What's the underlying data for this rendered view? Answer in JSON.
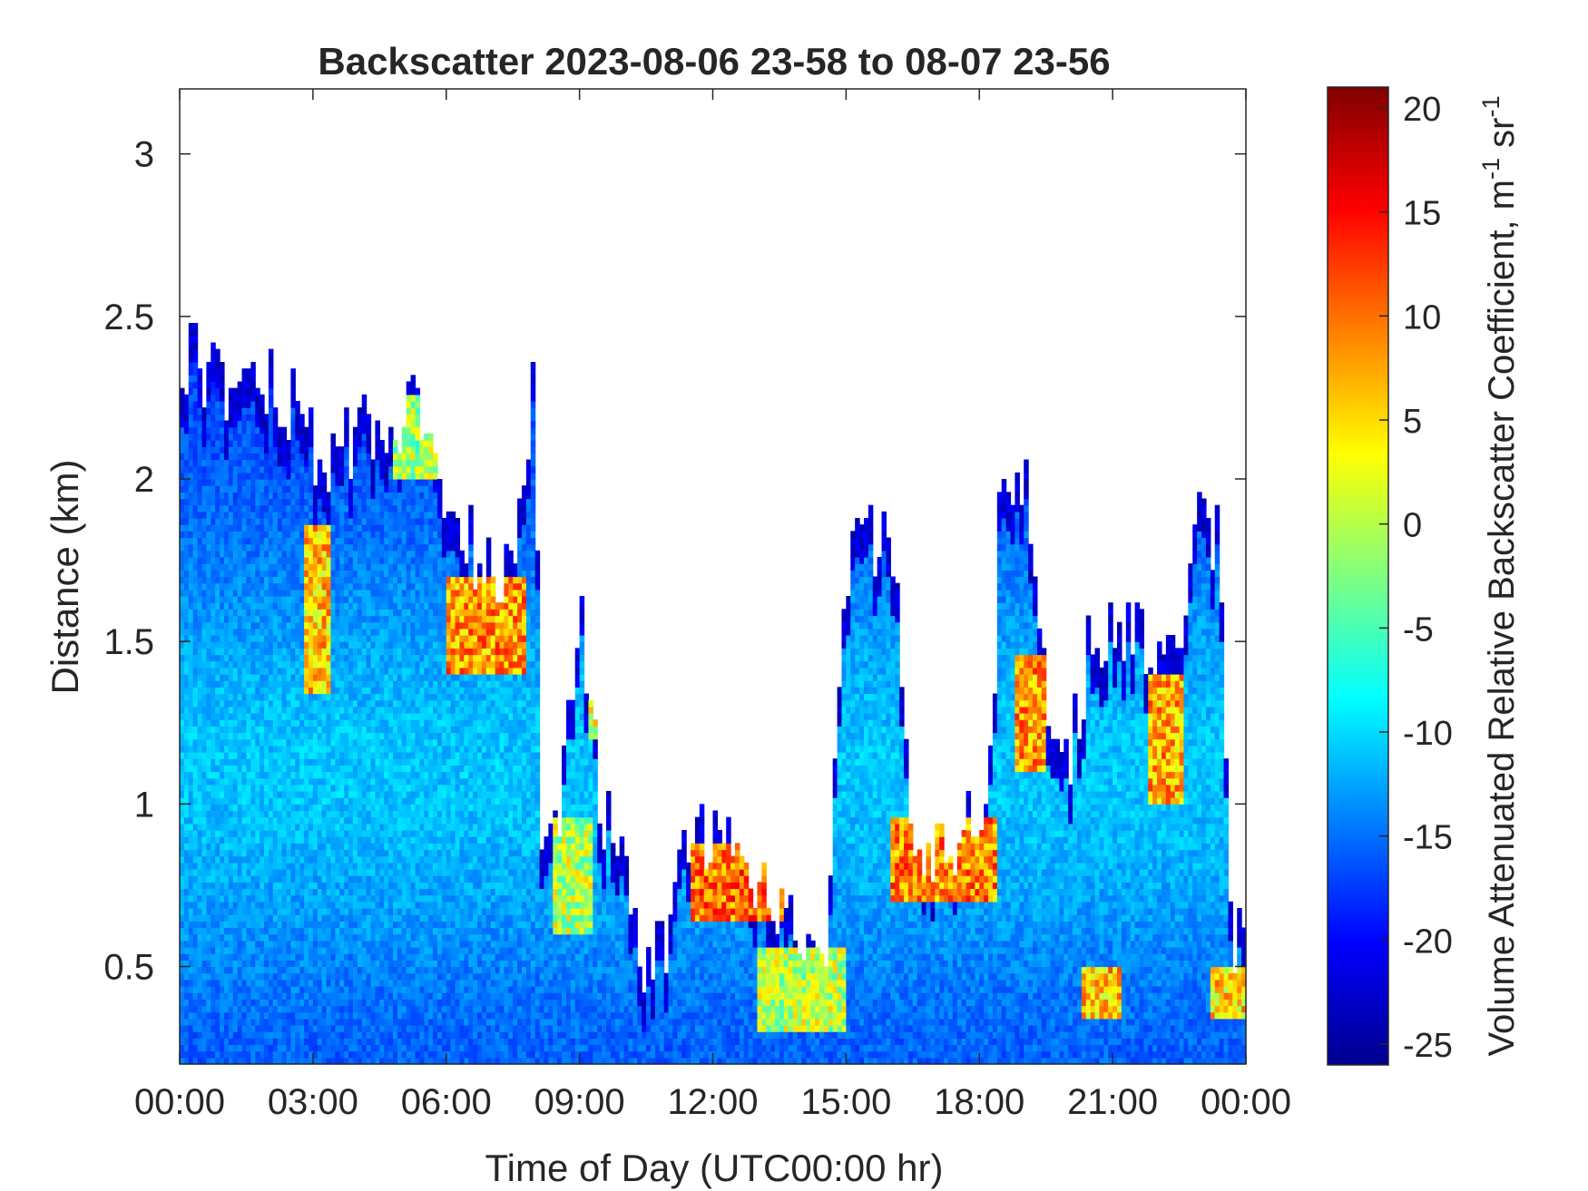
{
  "chart_data": {
    "type": "heatmap",
    "title": "Backscatter 2023-08-06 23-58 to 08-07 23-56",
    "xlabel": "Time of Day (UTC00:00 hr)",
    "ylabel": "Distance (km)",
    "colorbar_label": "Volume Attenuated Relative Backscatter Coefficient, m",
    "colorbar_label_unit1": "sr",
    "colorbar_label_sup": "-1",
    "colorbar_label_sup2": "-1",
    "x_range_hours": [
      0,
      24
    ],
    "y_range_km": [
      0.2,
      3.2
    ],
    "color_range": [
      -26,
      21
    ],
    "colormap": "jet",
    "x_ticks": [
      {
        "hour": 0,
        "label": "00:00"
      },
      {
        "hour": 3,
        "label": "03:00"
      },
      {
        "hour": 6,
        "label": "06:00"
      },
      {
        "hour": 9,
        "label": "09:00"
      },
      {
        "hour": 12,
        "label": "12:00"
      },
      {
        "hour": 15,
        "label": "15:00"
      },
      {
        "hour": 18,
        "label": "18:00"
      },
      {
        "hour": 21,
        "label": "21:00"
      },
      {
        "hour": 24,
        "label": "00:00"
      }
    ],
    "y_ticks": [
      {
        "km": 0.5,
        "label": "0.5"
      },
      {
        "km": 1,
        "label": "1"
      },
      {
        "km": 1.5,
        "label": "1.5"
      },
      {
        "km": 2,
        "label": "2"
      },
      {
        "km": 2.5,
        "label": "2.5"
      },
      {
        "km": 3,
        "label": "3"
      }
    ],
    "colorbar_ticks": [
      {
        "value": 20,
        "label": "20"
      },
      {
        "value": 15,
        "label": "15"
      },
      {
        "value": 10,
        "label": "10"
      },
      {
        "value": 5,
        "label": "5"
      },
      {
        "value": 0,
        "label": "0"
      },
      {
        "value": -5,
        "label": "-5"
      },
      {
        "value": -10,
        "label": "-10"
      },
      {
        "value": -15,
        "label": "-15"
      },
      {
        "value": -20,
        "label": "-20"
      },
      {
        "value": -25,
        "label": "-25"
      }
    ],
    "signal_top_km_profile": [
      [
        0.0,
        2.4
      ],
      [
        0.5,
        2.35
      ],
      [
        1.0,
        2.3
      ],
      [
        2.0,
        2.3
      ],
      [
        2.8,
        2.2
      ],
      [
        3.2,
        2.0
      ],
      [
        3.6,
        2.1
      ],
      [
        4.5,
        2.2
      ],
      [
        5.5,
        2.2
      ],
      [
        6.0,
        1.9
      ],
      [
        7.0,
        1.7
      ],
      [
        7.6,
        1.75
      ],
      [
        8.0,
        2.4
      ],
      [
        8.1,
        1.0
      ],
      [
        8.5,
        0.9
      ],
      [
        9.0,
        1.6
      ],
      [
        9.5,
        1.0
      ],
      [
        10.0,
        0.8
      ],
      [
        10.5,
        0.5
      ],
      [
        11.0,
        0.6
      ],
      [
        11.5,
        0.9
      ],
      [
        12.5,
        0.85
      ],
      [
        13.5,
        0.65
      ],
      [
        14.5,
        0.5
      ],
      [
        15.0,
        1.7
      ],
      [
        15.5,
        1.8
      ],
      [
        16.0,
        1.9
      ],
      [
        16.5,
        0.9
      ],
      [
        17.5,
        0.85
      ],
      [
        18.3,
        1.1
      ],
      [
        18.5,
        2.1
      ],
      [
        19.0,
        2.0
      ],
      [
        19.5,
        1.4
      ],
      [
        20.0,
        1.1
      ],
      [
        20.5,
        1.5
      ],
      [
        21.0,
        1.55
      ],
      [
        21.5,
        1.5
      ],
      [
        22.0,
        1.4
      ],
      [
        22.5,
        1.4
      ],
      [
        23.0,
        1.9
      ],
      [
        23.4,
        1.8
      ],
      [
        23.7,
        0.6
      ],
      [
        24.0,
        0.6
      ]
    ],
    "aerosol_layers": [
      {
        "hours": [
          2.8,
          3.4
        ],
        "km": [
          1.35,
          1.85
        ],
        "value": 12
      },
      {
        "hours": [
          4.8,
          5.8
        ],
        "km": [
          2.0,
          2.25
        ],
        "value": 5
      },
      {
        "hours": [
          6.0,
          7.8
        ],
        "km": [
          1.4,
          1.7
        ],
        "value": 14
      },
      {
        "hours": [
          8.4,
          9.3
        ],
        "km": [
          0.6,
          0.95
        ],
        "value": 6
      },
      {
        "hours": [
          9.2,
          9.6
        ],
        "km": [
          1.2,
          1.6
        ],
        "value": 8
      },
      {
        "hours": [
          11.5,
          13.6
        ],
        "km": [
          0.65,
          0.88
        ],
        "value": 16
      },
      {
        "hours": [
          13.0,
          15.0
        ],
        "km": [
          0.3,
          0.55
        ],
        "value": 6
      },
      {
        "hours": [
          16.0,
          18.4
        ],
        "km": [
          0.7,
          0.95
        ],
        "value": 15
      },
      {
        "hours": [
          18.8,
          19.5
        ],
        "km": [
          1.1,
          1.45
        ],
        "value": 14
      },
      {
        "hours": [
          20.3,
          21.2
        ],
        "km": [
          0.35,
          0.5
        ],
        "value": 12
      },
      {
        "hours": [
          21.8,
          22.6
        ],
        "km": [
          1.0,
          1.4
        ],
        "value": 13
      },
      {
        "hours": [
          23.2,
          24.0
        ],
        "km": [
          0.35,
          0.5
        ],
        "value": 11
      }
    ]
  }
}
